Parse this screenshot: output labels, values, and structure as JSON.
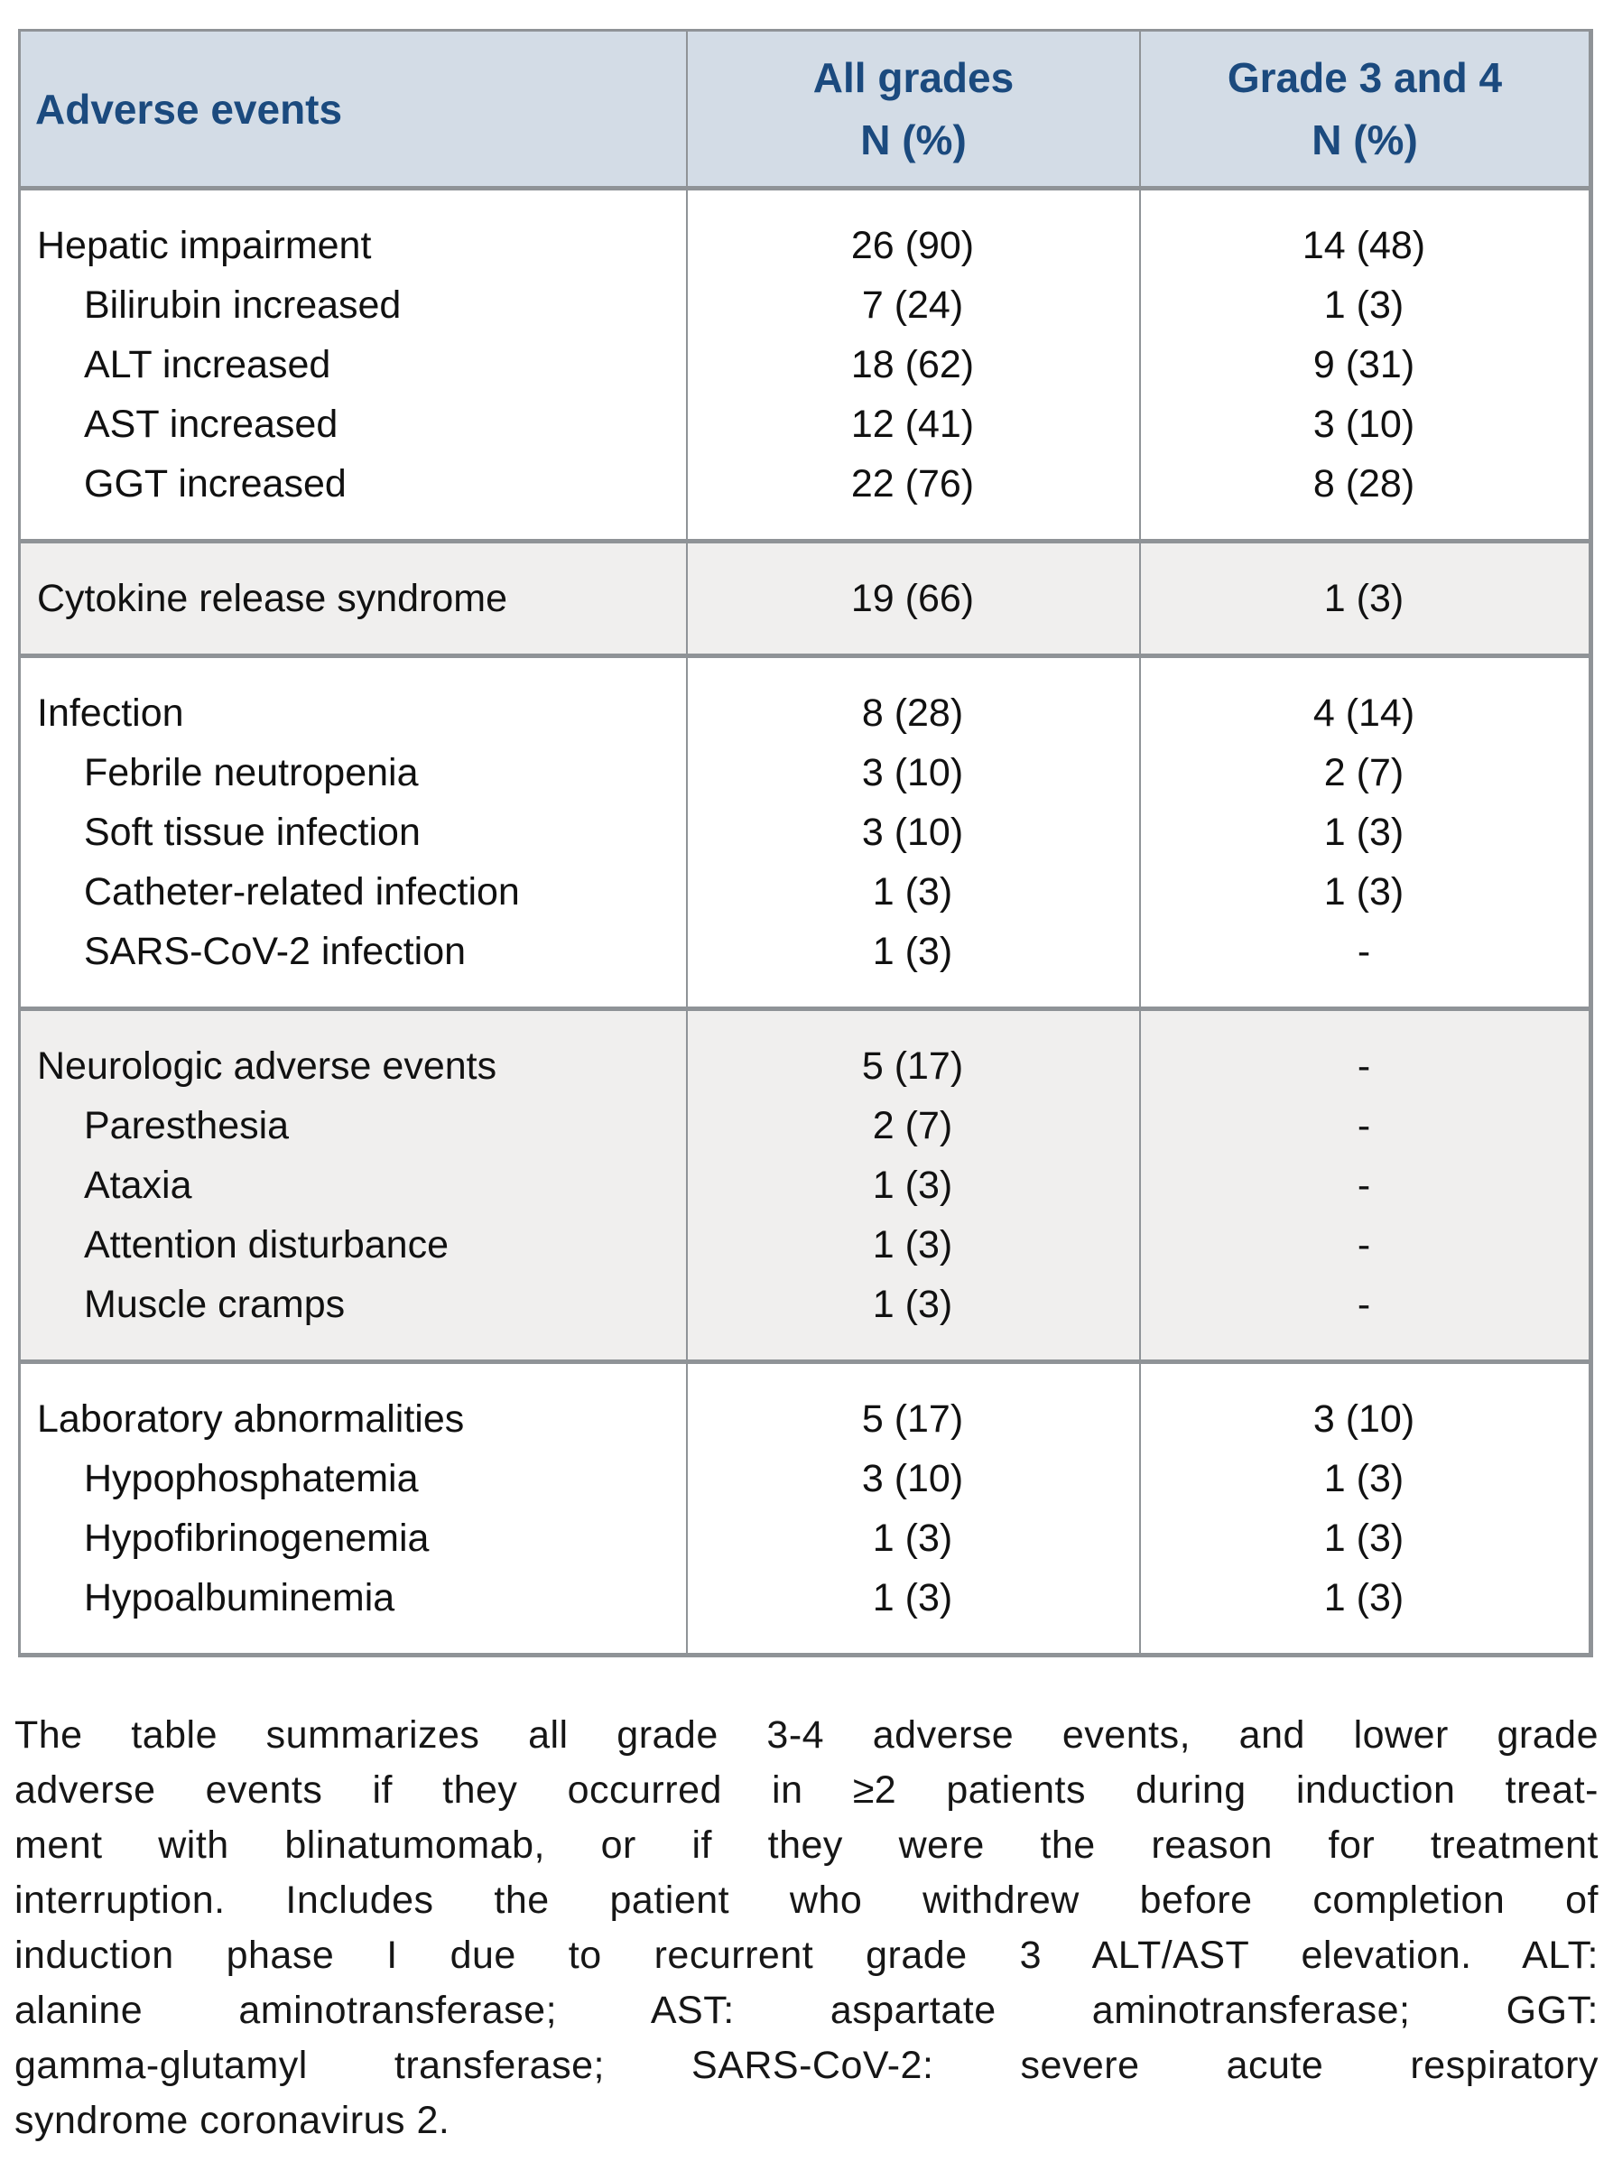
{
  "table": {
    "header": {
      "col1": "Adverse events",
      "col2_line1": "All grades",
      "col2_line2": "N (%)",
      "col3_line1": "Grade 3 and 4",
      "col3_line2": "N (%)"
    },
    "sections": [
      {
        "shade": "white",
        "rows": [
          {
            "label": "Hepatic impairment",
            "indent": false,
            "all_grades": "26 (90)",
            "grade_3_4": "14 (48)"
          },
          {
            "label": "Bilirubin increased",
            "indent": true,
            "all_grades": "7 (24)",
            "grade_3_4": "1 (3)"
          },
          {
            "label": "ALT increased",
            "indent": true,
            "all_grades": "18 (62)",
            "grade_3_4": "9 (31)"
          },
          {
            "label": "AST increased",
            "indent": true,
            "all_grades": "12 (41)",
            "grade_3_4": "3 (10)"
          },
          {
            "label": "GGT increased",
            "indent": true,
            "all_grades": "22 (76)",
            "grade_3_4": "8 (28)"
          }
        ]
      },
      {
        "shade": "gray",
        "rows": [
          {
            "label": "Cytokine release syndrome",
            "indent": false,
            "all_grades": "19 (66)",
            "grade_3_4": "1 (3)"
          }
        ]
      },
      {
        "shade": "white",
        "rows": [
          {
            "label": "Infection",
            "indent": false,
            "all_grades": "8 (28)",
            "grade_3_4": "4 (14)"
          },
          {
            "label": "Febrile neutropenia",
            "indent": true,
            "all_grades": "3 (10)",
            "grade_3_4": "2 (7)"
          },
          {
            "label": "Soft tissue infection",
            "indent": true,
            "all_grades": "3 (10)",
            "grade_3_4": "1 (3)"
          },
          {
            "label": "Catheter-related infection",
            "indent": true,
            "all_grades": "1 (3)",
            "grade_3_4": "1 (3)"
          },
          {
            "label": "SARS-CoV-2 infection",
            "indent": true,
            "all_grades": "1 (3)",
            "grade_3_4": "-"
          }
        ]
      },
      {
        "shade": "gray",
        "rows": [
          {
            "label": "Neurologic adverse events",
            "indent": false,
            "all_grades": "5 (17)",
            "grade_3_4": "-"
          },
          {
            "label": "Paresthesia",
            "indent": true,
            "all_grades": "2 (7)",
            "grade_3_4": "-"
          },
          {
            "label": "Ataxia",
            "indent": true,
            "all_grades": "1 (3)",
            "grade_3_4": "-"
          },
          {
            "label": "Attention disturbance",
            "indent": true,
            "all_grades": "1 (3)",
            "grade_3_4": "-"
          },
          {
            "label": "Muscle cramps",
            "indent": true,
            "all_grades": "1 (3)",
            "grade_3_4": "-"
          }
        ]
      },
      {
        "shade": "white",
        "rows": [
          {
            "label": "Laboratory abnormalities",
            "indent": false,
            "all_grades": "5 (17)",
            "grade_3_4": "3 (10)"
          },
          {
            "label": "Hypophosphatemia",
            "indent": true,
            "all_grades": "3 (10)",
            "grade_3_4": "1 (3)"
          },
          {
            "label": "Hypofibrinogenemia",
            "indent": true,
            "all_grades": "1 (3)",
            "grade_3_4": "1 (3)"
          },
          {
            "label": "Hypoalbuminemia",
            "indent": true,
            "all_grades": "1 (3)",
            "grade_3_4": "1 (3)"
          }
        ]
      }
    ]
  },
  "footnote": {
    "lines": [
      "The table summarizes all grade 3-4 adverse events, and lower grade",
      "adverse events if they occurred in ≥2 patients during induction treat-",
      "ment with blinatumomab, or if they were the reason for treatment",
      "interruption. Includes the patient who withdrew before completion of",
      "induction phase I due to recurrent grade 3 ALT/AST elevation. ALT:",
      "alanine aminotransferase; AST: aspartate aminotransferase; GGT:",
      "gamma-glutamyl transferase; SARS-CoV-2: severe acute respiratory",
      "syndrome coronavirus 2."
    ],
    "full_text": "The table summarizes all grade 3-4 adverse events, and lower grade adverse events if they occurred in ≥2 patients during induction treatment with blinatumomab, or if they were the reason for treatment interruption. Includes the patient who withdrew before completion of induction phase I due to recurrent grade 3 ALT/AST elevation. ALT: alanine aminotransferase; AST: aspartate aminotransferase; GGT: gamma-glutamyl transferase; SARS-CoV-2: severe acute respiratory syndrome coronavirus 2."
  },
  "colors": {
    "header_background": "#d3dce6",
    "header_text": "#1b4a7e",
    "shaded_section_background": "#f0efee",
    "border_gray": "#8f9397",
    "body_text": "#111111"
  }
}
